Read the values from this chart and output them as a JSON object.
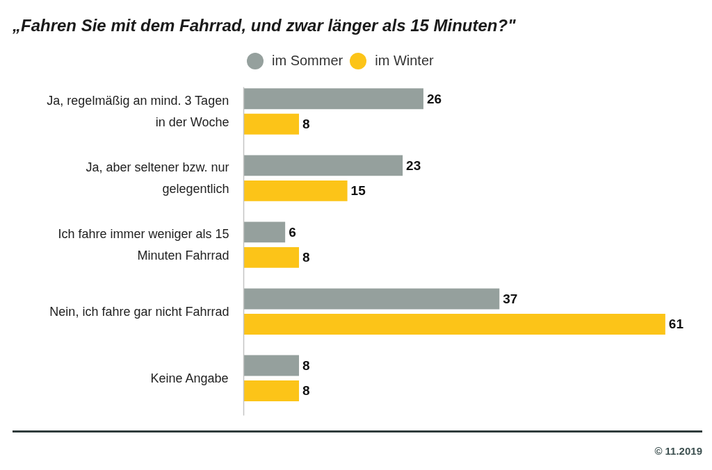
{
  "chart_data": {
    "type": "bar",
    "orientation": "horizontal",
    "title": "„Fahren Sie mit dem Fahrrad, und zwar länger als 15 Minuten?\"",
    "categories": [
      "Ja, regelmäßig an mind. 3 Tagen in der Woche",
      "Ja, aber seltener bzw. nur gelegentlich",
      "Ich fahre immer weniger als 15 Minuten Fahrrad",
      "Nein, ich fahre gar nicht Fahrrad",
      "Keine Angabe"
    ],
    "series": [
      {
        "name": "im Sommer",
        "color": "#95a09d",
        "values": [
          26,
          23,
          6,
          37,
          8
        ]
      },
      {
        "name": "im Winter",
        "color": "#fcc418",
        "values": [
          8,
          15,
          8,
          61,
          8
        ]
      }
    ],
    "data_labels": true,
    "legend": "top",
    "grid": false,
    "tick_labels": "y",
    "annotations": [
      "© 11.2019"
    ]
  }
}
